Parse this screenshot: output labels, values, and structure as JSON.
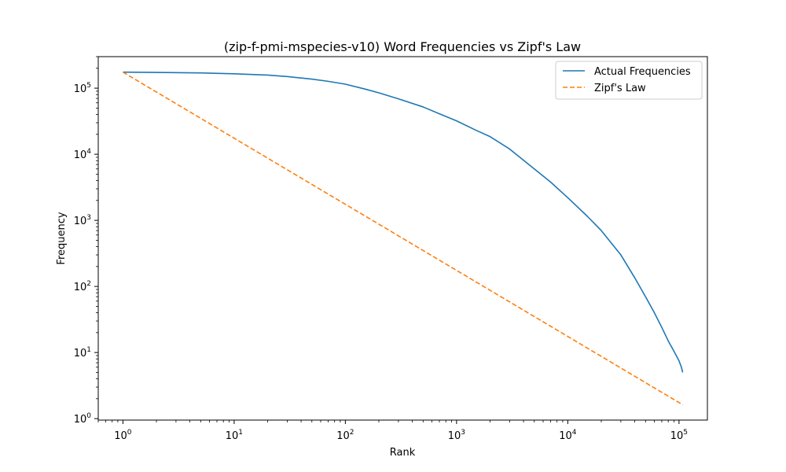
{
  "chart_data": {
    "type": "line",
    "title": "(zip-f-pmi-mspecies-v10) Word Frequencies vs Zipf's Law",
    "xlabel": "Rank",
    "ylabel": "Frequency",
    "xscale": "log",
    "yscale": "log",
    "xlim": [
      0.6,
      180000
    ],
    "ylim": [
      0.95,
      300000
    ],
    "grid": false,
    "legend_position": "top-right",
    "x_ticks": [
      {
        "value": 1,
        "base": "10",
        "exp": "0"
      },
      {
        "value": 10,
        "base": "10",
        "exp": "1"
      },
      {
        "value": 100,
        "base": "10",
        "exp": "2"
      },
      {
        "value": 1000,
        "base": "10",
        "exp": "3"
      },
      {
        "value": 10000,
        "base": "10",
        "exp": "4"
      },
      {
        "value": 100000,
        "base": "10",
        "exp": "5"
      }
    ],
    "y_ticks": [
      {
        "value": 1,
        "base": "10",
        "exp": "0"
      },
      {
        "value": 10,
        "base": "10",
        "exp": "1"
      },
      {
        "value": 100,
        "base": "10",
        "exp": "2"
      },
      {
        "value": 1000,
        "base": "10",
        "exp": "3"
      },
      {
        "value": 10000,
        "base": "10",
        "exp": "4"
      },
      {
        "value": 100000,
        "base": "10",
        "exp": "5"
      }
    ],
    "series": [
      {
        "name": "Actual Frequencies",
        "color": "#1f77b4",
        "style": "solid",
        "x": [
          1,
          2,
          5,
          10,
          20,
          30,
          50,
          70,
          100,
          150,
          200,
          300,
          500,
          700,
          1000,
          1500,
          2000,
          3000,
          5000,
          7000,
          10000,
          15000,
          20000,
          30000,
          40000,
          50000,
          60000,
          70000,
          80000,
          90000,
          100000,
          105000,
          108000
        ],
        "y": [
          175000,
          173000,
          170000,
          165000,
          158000,
          150000,
          137000,
          127000,
          115000,
          97000,
          85000,
          69000,
          52000,
          41000,
          32000,
          23000,
          18500,
          12000,
          6000,
          3800,
          2200,
          1150,
          700,
          300,
          135,
          70,
          40,
          24,
          15,
          10.5,
          7.5,
          6,
          5
        ]
      },
      {
        "name": "Zipf's Law",
        "color": "#ff7f0e",
        "style": "dashed",
        "x": [
          1,
          108000
        ],
        "y": [
          175000,
          1.62
        ]
      }
    ]
  }
}
